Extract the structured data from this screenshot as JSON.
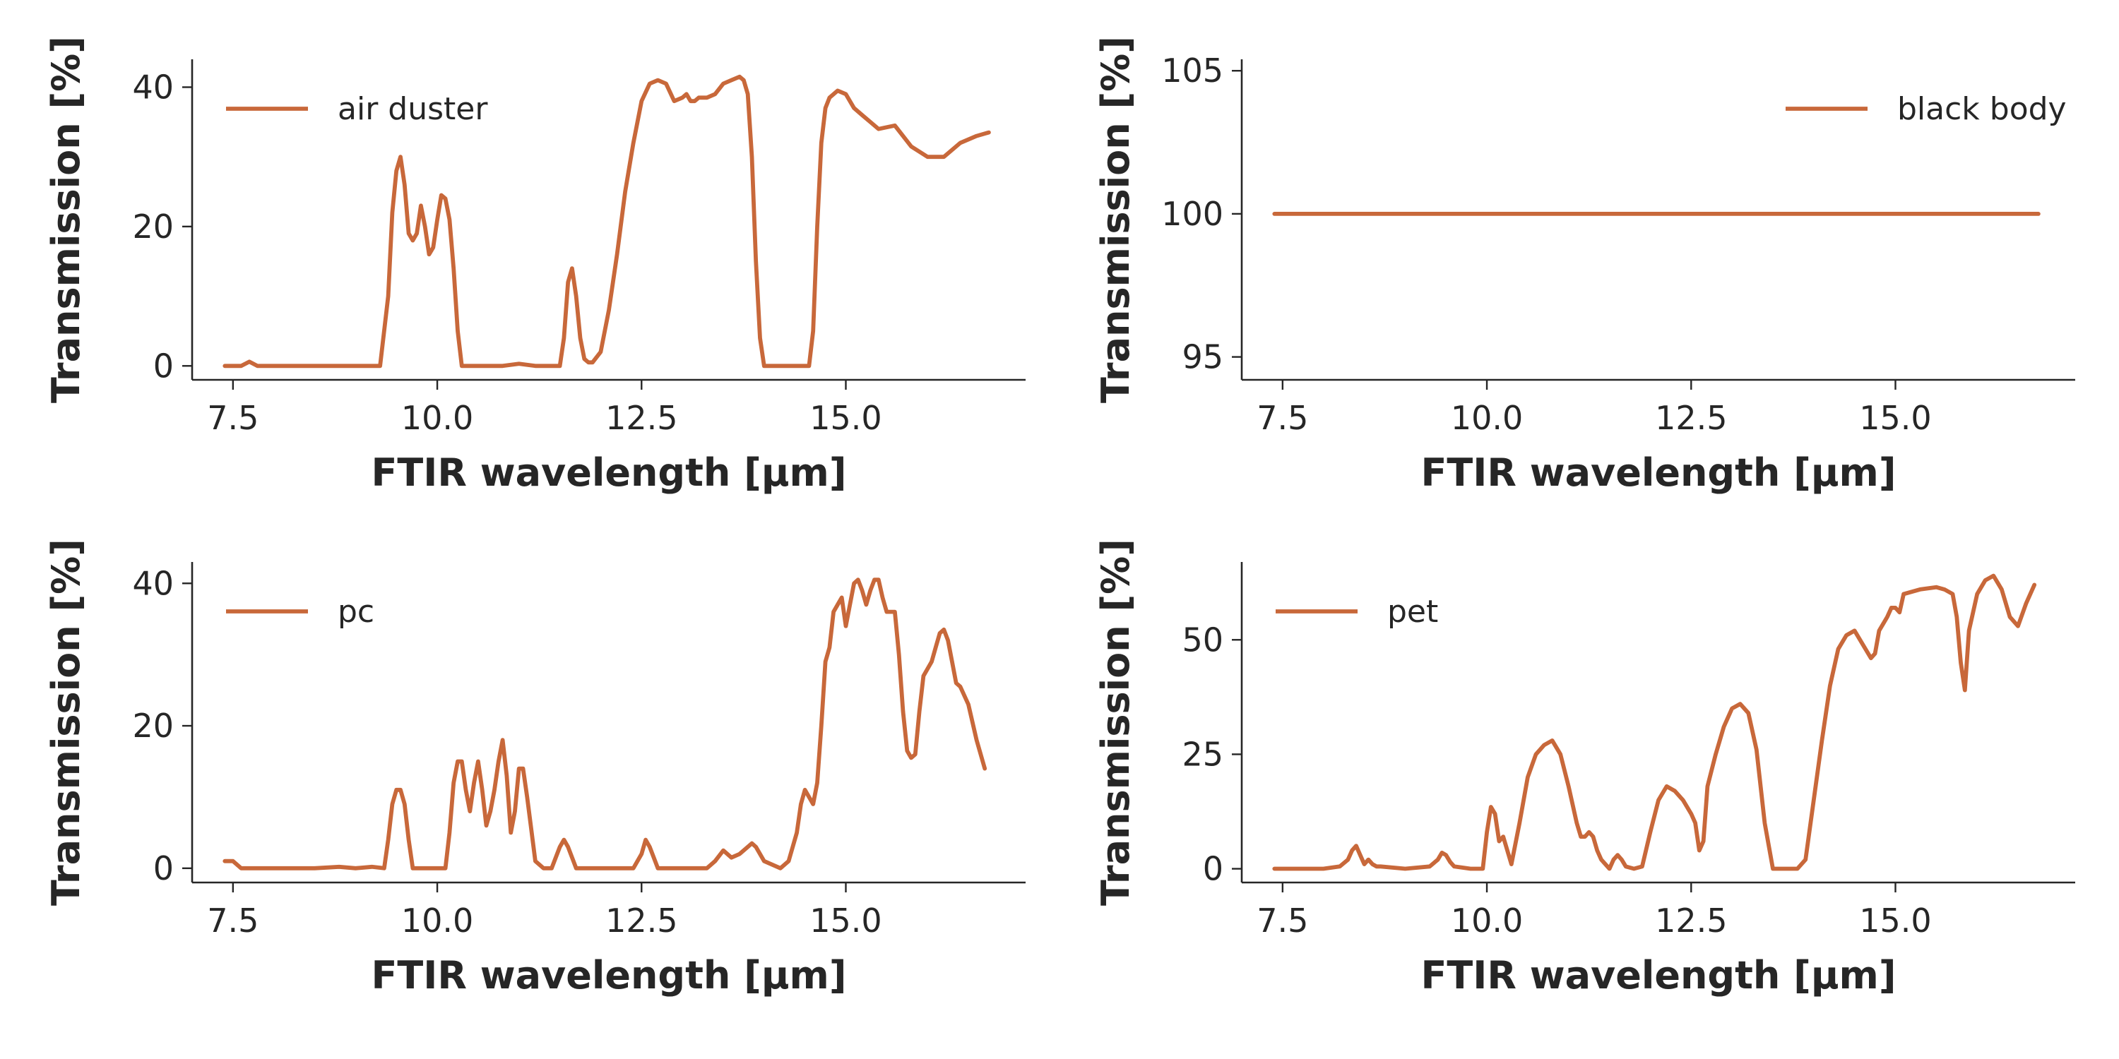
{
  "colors": {
    "series": "#c8683a",
    "axis": "#262626",
    "background": "#ffffff"
  },
  "chart_data": [
    {
      "type": "line",
      "xlabel": "FTIR wavelength [μm]",
      "ylabel": "Transmission [%]",
      "xlim": [
        7.0,
        17.2
      ],
      "ylim": [
        -2,
        44
      ],
      "xticks": [
        7.5,
        10.0,
        12.5,
        15.0
      ],
      "yticks": [
        0,
        20,
        40
      ],
      "grid": false,
      "legend_position": "top-left",
      "series": [
        {
          "name": "air duster",
          "x": [
            7.4,
            7.6,
            7.7,
            7.8,
            8.0,
            8.5,
            9.0,
            9.3,
            9.4,
            9.45,
            9.5,
            9.55,
            9.6,
            9.65,
            9.7,
            9.75,
            9.8,
            9.85,
            9.9,
            9.95,
            10.0,
            10.05,
            10.1,
            10.15,
            10.2,
            10.25,
            10.3,
            10.35,
            10.4,
            10.45,
            10.5,
            10.6,
            10.8,
            11.0,
            11.2,
            11.5,
            11.55,
            11.6,
            11.65,
            11.7,
            11.75,
            11.8,
            11.85,
            11.9,
            12.0,
            12.1,
            12.2,
            12.3,
            12.4,
            12.5,
            12.6,
            12.7,
            12.8,
            12.9,
            13.0,
            13.05,
            13.1,
            13.15,
            13.2,
            13.3,
            13.4,
            13.5,
            13.6,
            13.7,
            13.75,
            13.8,
            13.85,
            13.9,
            13.95,
            14.0,
            14.05,
            14.1,
            14.2,
            14.4,
            14.55,
            14.6,
            14.65,
            14.7,
            14.75,
            14.8,
            14.9,
            15.0,
            15.1,
            15.2,
            15.3,
            15.4,
            15.6,
            15.8,
            16.0,
            16.2,
            16.4,
            16.6,
            16.75
          ],
          "values": [
            0,
            0,
            0.6,
            0,
            0,
            0,
            0,
            0,
            10,
            22,
            28,
            30,
            26,
            19,
            18,
            19,
            23,
            20,
            16,
            17,
            21,
            24.5,
            24,
            21,
            14,
            5,
            0,
            0,
            0,
            0,
            0,
            0,
            0,
            0.3,
            0,
            0,
            4,
            12,
            14,
            10,
            4,
            1,
            0.5,
            0.5,
            2,
            8,
            16,
            25,
            32,
            38,
            40.5,
            41,
            40.5,
            38,
            38.5,
            39,
            38,
            38,
            38.5,
            38.5,
            39,
            40.5,
            41,
            41.5,
            41,
            39,
            30,
            15,
            4,
            0,
            0,
            0,
            0,
            0,
            0,
            5,
            20,
            32,
            37,
            38.5,
            39.5,
            39,
            37,
            36,
            35,
            34,
            34.5,
            31.5,
            30,
            30,
            32,
            33,
            33.5
          ]
        }
      ]
    },
    {
      "type": "line",
      "xlabel": "FTIR wavelength [μm]",
      "ylabel": "Transmission [%]",
      "xlim": [
        7.0,
        17.2
      ],
      "ylim": [
        94.2,
        105.4
      ],
      "xticks": [
        7.5,
        10.0,
        12.5,
        15.0
      ],
      "yticks": [
        95,
        100,
        105
      ],
      "grid": false,
      "legend_position": "top-right",
      "series": [
        {
          "name": "black body",
          "x": [
            7.4,
            16.75
          ],
          "values": [
            100,
            100
          ]
        }
      ]
    },
    {
      "type": "line",
      "xlabel": "FTIR wavelength [μm]",
      "ylabel": "Transmission [%]",
      "xlim": [
        7.0,
        17.2
      ],
      "ylim": [
        -2,
        43
      ],
      "xticks": [
        7.5,
        10.0,
        12.5,
        15.0
      ],
      "yticks": [
        0,
        20,
        40
      ],
      "grid": false,
      "legend_position": "top-left",
      "series": [
        {
          "name": "pc",
          "x": [
            7.4,
            7.5,
            7.6,
            8.0,
            8.5,
            8.8,
            9.0,
            9.2,
            9.35,
            9.4,
            9.45,
            9.5,
            9.55,
            9.6,
            9.65,
            9.7,
            9.75,
            9.8,
            10.1,
            10.15,
            10.2,
            10.25,
            10.3,
            10.35,
            10.4,
            10.45,
            10.5,
            10.55,
            10.6,
            10.65,
            10.7,
            10.75,
            10.8,
            10.85,
            10.9,
            10.95,
            11.0,
            11.05,
            11.1,
            11.2,
            11.3,
            11.4,
            11.5,
            11.55,
            11.6,
            11.7,
            12.0,
            12.4,
            12.5,
            12.55,
            12.6,
            12.7,
            13.0,
            13.3,
            13.4,
            13.5,
            13.6,
            13.7,
            13.8,
            13.85,
            13.9,
            14.0,
            14.2,
            14.3,
            14.4,
            14.45,
            14.5,
            14.55,
            14.6,
            14.65,
            14.7,
            14.75,
            14.8,
            14.85,
            14.9,
            14.95,
            15.0,
            15.05,
            15.1,
            15.15,
            15.2,
            15.25,
            15.3,
            15.35,
            15.4,
            15.45,
            15.5,
            15.6,
            15.65,
            15.7,
            15.75,
            15.8,
            15.85,
            15.9,
            15.95,
            16.0,
            16.05,
            16.1,
            16.15,
            16.2,
            16.25,
            16.3,
            16.35,
            16.4,
            16.5,
            16.6,
            16.7
          ],
          "values": [
            1,
            1,
            0,
            0,
            0,
            0.2,
            0,
            0.2,
            0,
            4,
            9,
            11,
            11,
            9,
            4,
            0,
            0,
            0,
            0,
            5,
            12,
            15,
            15,
            11,
            8,
            12,
            15,
            11,
            6,
            8,
            11,
            15,
            18,
            13,
            5,
            8,
            14,
            14,
            10,
            1,
            0,
            0,
            3,
            4,
            3,
            0,
            0,
            0,
            2,
            4,
            3,
            0,
            0,
            0,
            1,
            2.5,
            1.5,
            2,
            3,
            3.5,
            3,
            1,
            0,
            1,
            5,
            9,
            11,
            10,
            9,
            12,
            20,
            29,
            31,
            36,
            37,
            38,
            34,
            37,
            40,
            40.5,
            39,
            37,
            39,
            40.5,
            40.5,
            38,
            36,
            36,
            30,
            22,
            16.5,
            15.5,
            16,
            22,
            27,
            28,
            29,
            31,
            33,
            33.5,
            32,
            29,
            26,
            25.5,
            23,
            18,
            14
          ]
        }
      ]
    },
    {
      "type": "line",
      "xlabel": "FTIR wavelength [μm]",
      "ylabel": "Transmission [%]",
      "xlim": [
        7.0,
        17.2
      ],
      "ylim": [
        -3,
        67
      ],
      "xticks": [
        7.5,
        10.0,
        12.5,
        15.0
      ],
      "yticks": [
        0,
        25,
        50
      ],
      "grid": false,
      "legend_position": "top-left",
      "series": [
        {
          "name": "pet",
          "x": [
            7.4,
            7.6,
            8.0,
            8.2,
            8.3,
            8.35,
            8.4,
            8.45,
            8.5,
            8.55,
            8.6,
            8.65,
            8.7,
            9.0,
            9.3,
            9.4,
            9.45,
            9.5,
            9.55,
            9.6,
            9.8,
            9.95,
            10.0,
            10.05,
            10.1,
            10.15,
            10.2,
            10.3,
            10.4,
            10.5,
            10.6,
            10.7,
            10.8,
            10.9,
            11.0,
            11.1,
            11.15,
            11.2,
            11.25,
            11.3,
            11.35,
            11.4,
            11.5,
            11.55,
            11.6,
            11.65,
            11.7,
            11.8,
            11.9,
            12.0,
            12.1,
            12.2,
            12.3,
            12.4,
            12.5,
            12.55,
            12.6,
            12.65,
            12.7,
            12.8,
            12.9,
            13.0,
            13.1,
            13.2,
            13.3,
            13.4,
            13.5,
            13.6,
            13.8,
            13.9,
            14.0,
            14.1,
            14.2,
            14.3,
            14.4,
            14.5,
            14.6,
            14.7,
            14.75,
            14.8,
            14.9,
            14.95,
            15.0,
            15.05,
            15.1,
            15.3,
            15.5,
            15.6,
            15.7,
            15.75,
            15.8,
            15.85,
            15.9,
            16.0,
            16.1,
            16.2,
            16.3,
            16.4,
            16.5,
            16.6,
            16.7
          ],
          "values": [
            0,
            0,
            0,
            0.5,
            2,
            4,
            5,
            3,
            1,
            2,
            1,
            0.5,
            0.5,
            0,
            0.5,
            2,
            3.5,
            3,
            1.5,
            0.5,
            0,
            0,
            8,
            13.5,
            12,
            6,
            7,
            1,
            10,
            20,
            25,
            27,
            28,
            25,
            18,
            10,
            7,
            7,
            8,
            7,
            4,
            2,
            0,
            2,
            3,
            2,
            0.5,
            0,
            0.5,
            8,
            15,
            18,
            17,
            15,
            12,
            10,
            4,
            6,
            18,
            25,
            31,
            35,
            36,
            34,
            26,
            10,
            0,
            0,
            0,
            2,
            15,
            28,
            40,
            48,
            51,
            52,
            49,
            46,
            47,
            52,
            55,
            57,
            57,
            56,
            60,
            61,
            61.5,
            61,
            60,
            55,
            45,
            39,
            52,
            60,
            63,
            64,
            61,
            55,
            53,
            58,
            62
          ]
        }
      ]
    }
  ]
}
